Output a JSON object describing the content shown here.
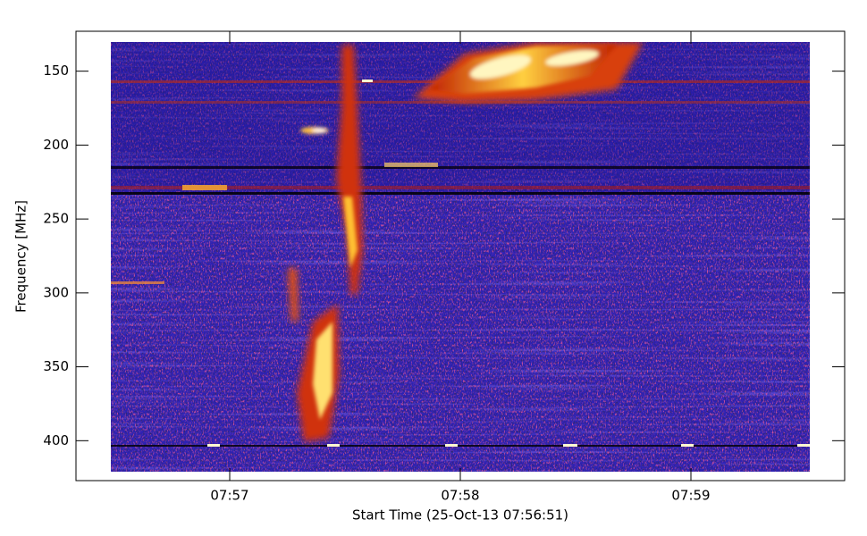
{
  "chart_data": {
    "type": "spectrogram",
    "xlabel": "Start Time (25-Oct-13 07:56:51)",
    "ylabel": "Frequency [MHz]",
    "xlim": [
      "07:56:20",
      "07:59:40"
    ],
    "xticks": [
      {
        "value": "07:57:00",
        "label": "07:57"
      },
      {
        "value": "07:58:00",
        "label": "07:58"
      },
      {
        "value": "07:59:00",
        "label": "07:59"
      }
    ],
    "ylim": [
      427,
      123
    ],
    "yticks": [
      150,
      200,
      250,
      300,
      350,
      400
    ]
  }
}
